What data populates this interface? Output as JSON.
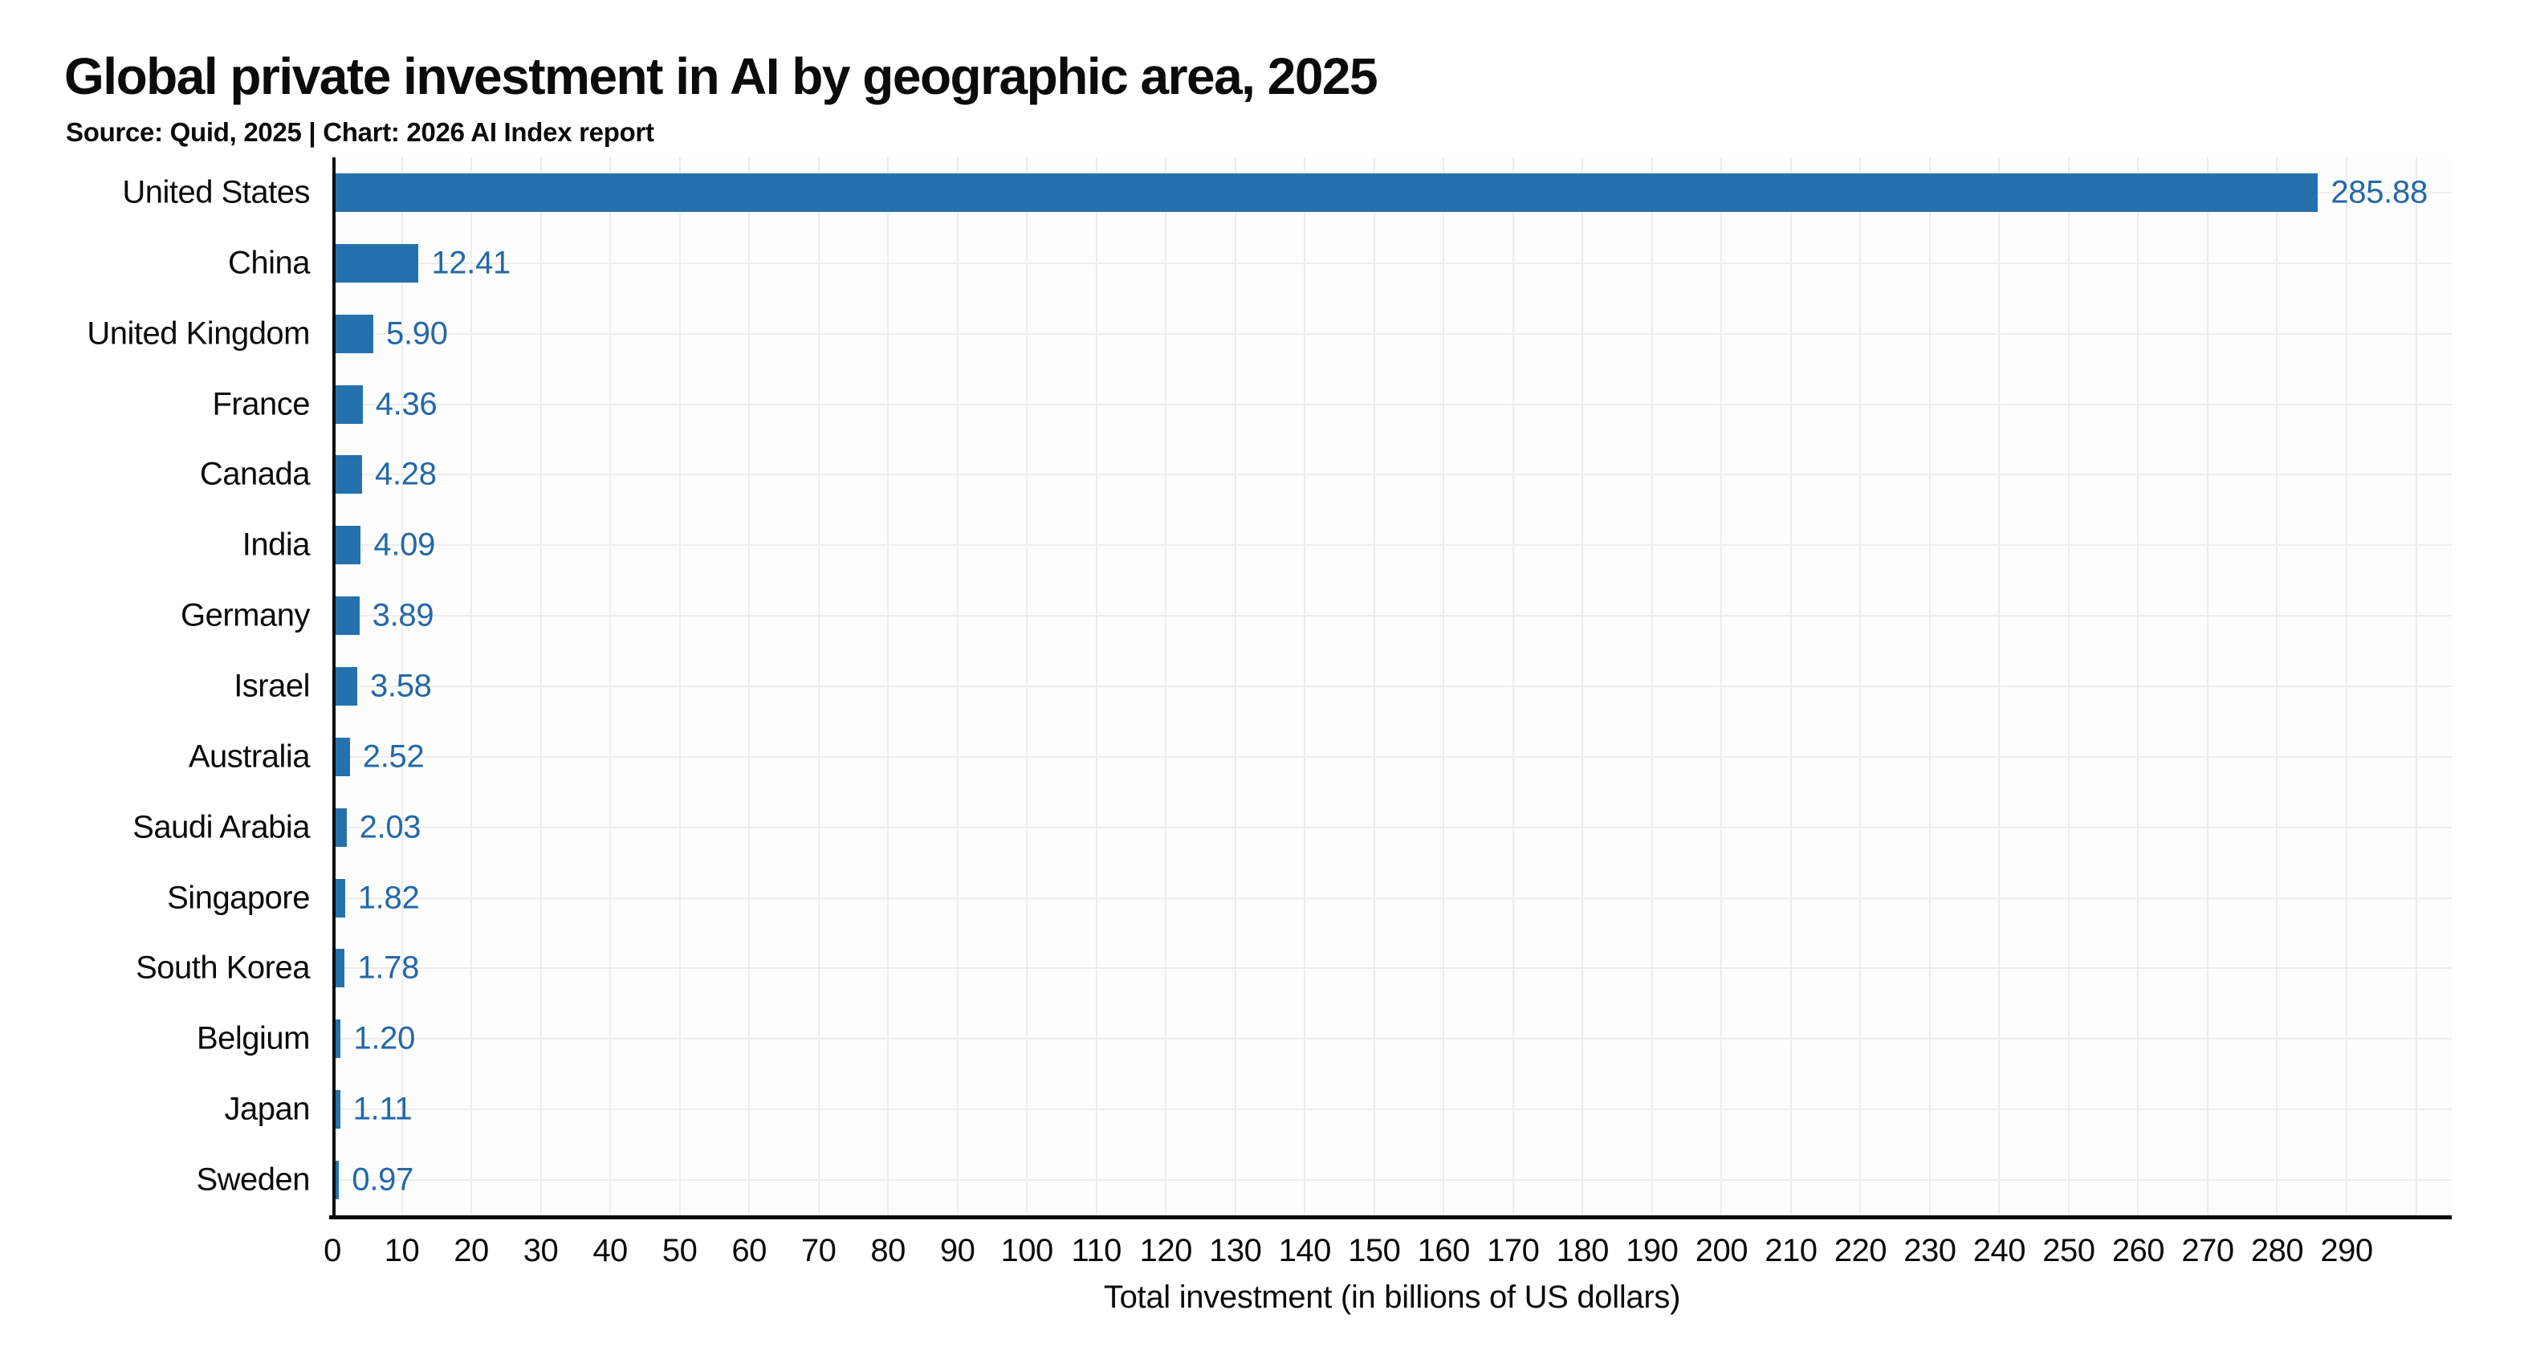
{
  "header": {
    "title": "Global private investment in AI by geographic area, 2025",
    "subtitle": "Source: Quid, 2025 | Chart: 2026 AI Index report"
  },
  "chart_data": {
    "type": "bar",
    "orientation": "horizontal",
    "title": "Global private investment in AI by geographic area, 2025",
    "subtitle": "Source: Quid, 2025 | Chart: 2026 AI Index report",
    "xlabel": "Total investment (in billions of US dollars)",
    "ylabel": "",
    "categories": [
      "United States",
      "China",
      "United Kingdom",
      "France",
      "Canada",
      "India",
      "Germany",
      "Israel",
      "Australia",
      "Saudi Arabia",
      "Singapore",
      "South Korea",
      "Belgium",
      "Japan",
      "Sweden"
    ],
    "values": [
      285.88,
      12.41,
      5.9,
      4.36,
      4.28,
      4.09,
      3.89,
      3.58,
      2.52,
      2.03,
      1.82,
      1.78,
      1.2,
      1.11,
      0.97
    ],
    "value_labels": [
      "285.88",
      "12.41",
      "5.90",
      "4.36",
      "4.28",
      "4.09",
      "3.89",
      "3.58",
      "2.52",
      "2.03",
      "1.82",
      "1.78",
      "1.20",
      "1.11",
      "0.97"
    ],
    "xlim": [
      0,
      305
    ],
    "xticks": {
      "start": 0,
      "end": 290,
      "step": 10
    },
    "grid": {
      "vertical_step": 10,
      "vertical_max": 300,
      "horizontal": "category-centers",
      "color": "#ededed"
    },
    "legend_position": "none",
    "colors": {
      "bar": "#2471ae",
      "value_label": "#2368a9",
      "text": "#0b0b0b",
      "axis": "#0b0b0b",
      "grid": "#ededed"
    }
  }
}
